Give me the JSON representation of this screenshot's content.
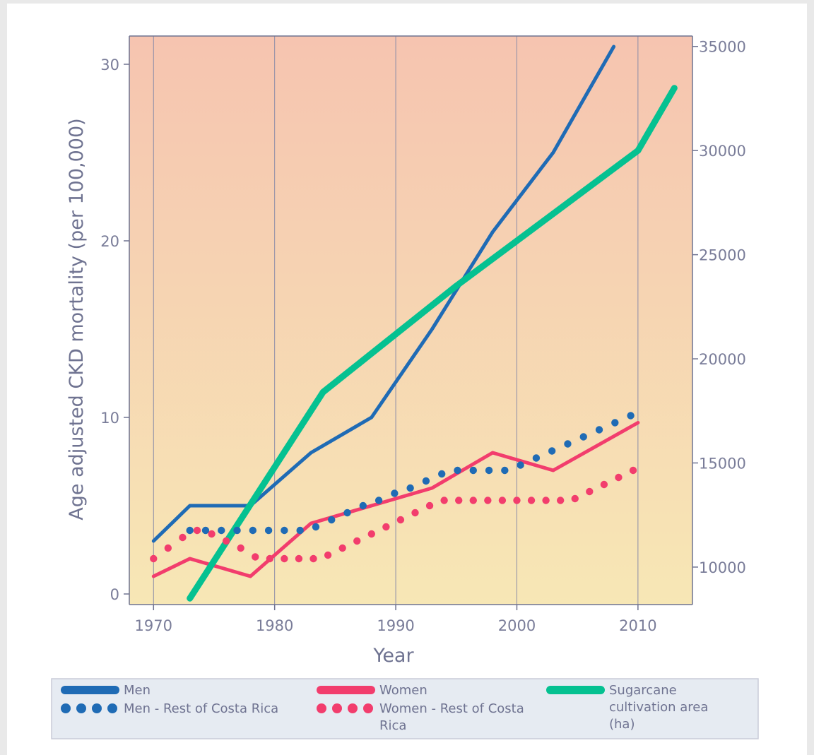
{
  "chart_data": {
    "type": "line",
    "xlabel": "Year",
    "ylabel": "Age adjusted CKD mortality (per 100,000)",
    "y2label": "",
    "xlim": [
      1968,
      2014.5
    ],
    "ylim": [
      -0.6,
      31.6
    ],
    "y2lim": [
      8200,
      35500
    ],
    "x_ticks": [
      1970,
      1980,
      1990,
      2000,
      2010
    ],
    "y_ticks": [
      0,
      10,
      20,
      30
    ],
    "y2_ticks": [
      10000,
      15000,
      20000,
      25000,
      30000,
      35000
    ],
    "grid": "vertical lines at x ticks",
    "background_gradient": [
      "#f6c4b0",
      "#f7e7b5"
    ],
    "series": [
      {
        "name": "Men",
        "axis": "left",
        "style": "solid",
        "color": "#1f6bb5",
        "x": [
          1970,
          1973,
          1978,
          1983,
          1988,
          1993,
          1998,
          2003,
          2008
        ],
        "y": [
          3.0,
          5.0,
          5.0,
          8.0,
          10.0,
          15.0,
          20.5,
          25.0,
          31.0
        ]
      },
      {
        "name": "Women",
        "axis": "left",
        "style": "solid",
        "color": "#f23d6d",
        "x": [
          1970,
          1973,
          1978,
          1983,
          1988,
          1993,
          1998,
          2003,
          2010
        ],
        "y": [
          1.0,
          2.0,
          1.0,
          4.0,
          5.0,
          6.0,
          8.0,
          7.0,
          9.7
        ]
      },
      {
        "name": "Sugarcane cultivation area (ha)",
        "axis": "right",
        "style": "solid",
        "color": "#05c191",
        "x": [
          1973,
          1984,
          1995,
          2010,
          2013
        ],
        "y": [
          8500,
          18400,
          23500,
          30000,
          33000
        ]
      },
      {
        "name": "Men - Rest of Costa Rica",
        "axis": "left",
        "style": "dotted",
        "color": "#1f6bb5",
        "x": [
          1973,
          1974.3,
          1975.6,
          1976.9,
          1978.2,
          1979.5,
          1980.8,
          1982.1,
          1983.4,
          1984.7,
          1986,
          1987.3,
          1988.6,
          1989.9,
          1991.2,
          1992.5,
          1993.8,
          1995.1,
          1996.4,
          1997.7,
          1999,
          2000.3,
          2001.6,
          2002.9,
          2004.2,
          2005.5,
          2006.8,
          2008.1,
          2009.4
        ],
        "y": [
          3.6,
          3.6,
          3.6,
          3.6,
          3.6,
          3.6,
          3.6,
          3.6,
          3.8,
          4.2,
          4.6,
          5.0,
          5.3,
          5.7,
          6.0,
          6.4,
          6.8,
          7.0,
          7.0,
          7.0,
          7.0,
          7.3,
          7.7,
          8.1,
          8.5,
          8.9,
          9.3,
          9.7,
          10.1
        ]
      },
      {
        "name": "Women - Rest of Costa Rica",
        "axis": "left",
        "style": "dotted",
        "color": "#f23d6d",
        "x": [
          1970,
          1971.2,
          1972.4,
          1973.6,
          1974.8,
          1976,
          1977.2,
          1978.4,
          1979.6,
          1980.8,
          1982,
          1983.2,
          1984.4,
          1985.6,
          1986.8,
          1988,
          1989.2,
          1990.4,
          1991.6,
          1992.8,
          1994,
          1995.2,
          1996.4,
          1997.6,
          1998.8,
          2000,
          2001.2,
          2002.4,
          2003.6,
          2004.8,
          2006,
          2007.2,
          2008.4,
          2009.6
        ],
        "y": [
          2.0,
          2.6,
          3.2,
          3.6,
          3.4,
          3.0,
          2.6,
          2.1,
          2.0,
          2.0,
          2.0,
          2.0,
          2.2,
          2.6,
          3.0,
          3.4,
          3.8,
          4.2,
          4.6,
          5.0,
          5.3,
          5.3,
          5.3,
          5.3,
          5.3,
          5.3,
          5.3,
          5.3,
          5.3,
          5.4,
          5.8,
          6.2,
          6.6,
          7.0
        ]
      }
    ],
    "legend": {
      "position": "bottom",
      "entries": [
        {
          "label": "Men",
          "color": "#1f6bb5",
          "style": "solid"
        },
        {
          "label": "Women",
          "color": "#f23d6d",
          "style": "solid"
        },
        {
          "label": "Sugarcane cultivation area (ha)",
          "color": "#05c191",
          "style": "solid"
        },
        {
          "label": "Men - Rest of Costa Rica",
          "color": "#1f6bb5",
          "style": "dotted"
        },
        {
          "label": "Women - Rest of Costa Rica",
          "color": "#f23d6d",
          "style": "dotted"
        }
      ]
    }
  }
}
